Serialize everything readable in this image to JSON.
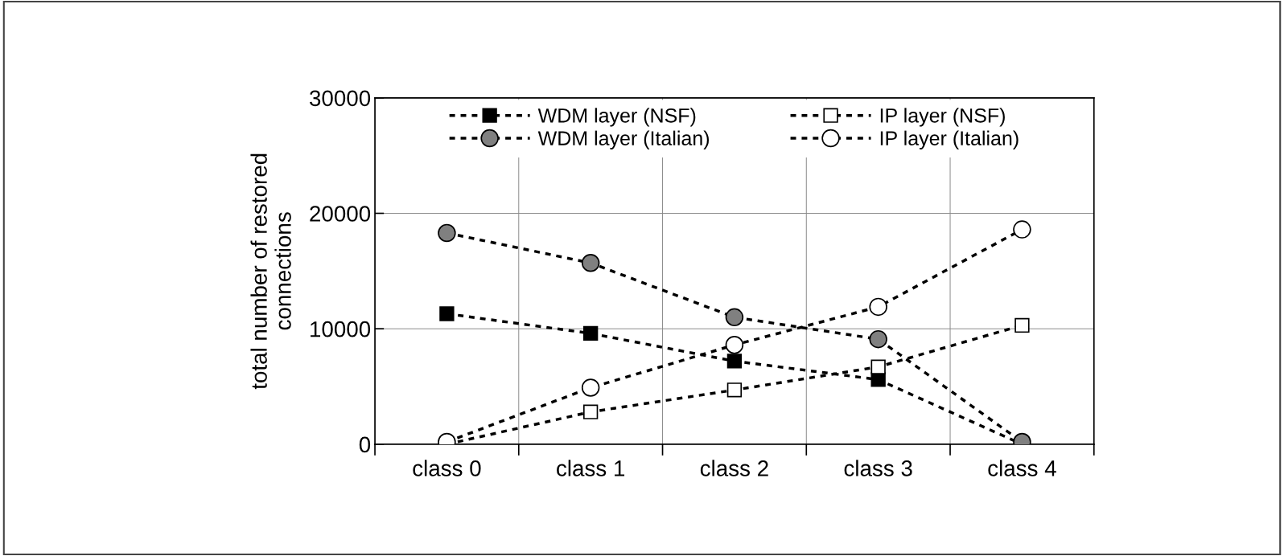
{
  "chart_data": {
    "type": "line",
    "ylabel": "total number of restored\nconnections",
    "categories": [
      "class 0",
      "class 1",
      "class 2",
      "class 3",
      "class 4"
    ],
    "series": [
      {
        "name": "WDM layer (NSF)",
        "color": "#000000",
        "marker": "square",
        "values": [
          11300,
          9600,
          7200,
          5600,
          0
        ]
      },
      {
        "name": "WDM layer (Italian)",
        "color": "#808080",
        "marker": "circle",
        "values": [
          18300,
          15700,
          11000,
          9100,
          200
        ]
      },
      {
        "name": "IP layer (NSF)",
        "color": "#ffffff",
        "marker": "square",
        "values": [
          0,
          2800,
          4700,
          6700,
          10300
        ]
      },
      {
        "name": "IP layer (Italian)",
        "color": "#ffffff",
        "marker": "circle",
        "values": [
          200,
          4900,
          8600,
          11900,
          18600
        ]
      }
    ],
    "ylim": [
      0,
      30000
    ],
    "yticks": [
      0,
      10000,
      20000,
      30000
    ],
    "grid": true,
    "legend": "top",
    "line_style": "dashed"
  }
}
